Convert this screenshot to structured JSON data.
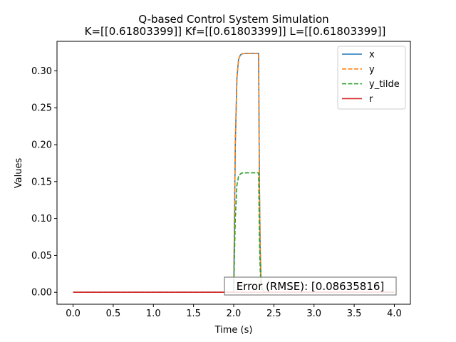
{
  "chart_data": {
    "type": "line",
    "title": "Q-based Control System Simulation",
    "subtitle": "K=[[0.61803399]] Kf=[[0.61803399]] L=[[0.61803399]]",
    "xlabel": "Time (s)",
    "ylabel": "Values",
    "xlim": [
      -0.2,
      4.2
    ],
    "ylim": [
      -0.0162,
      0.34
    ],
    "xticks": [
      "0.0",
      "0.5",
      "1.0",
      "1.5",
      "2.0",
      "2.5",
      "3.0",
      "3.5",
      "4.0"
    ],
    "xtick_values": [
      0,
      0.5,
      1.0,
      1.5,
      2.0,
      2.5,
      3.0,
      3.5,
      4.0
    ],
    "yticks": [
      "0.00",
      "0.05",
      "0.10",
      "0.15",
      "0.20",
      "0.25",
      "0.30"
    ],
    "ytick_values": [
      0,
      0.05,
      0.1,
      0.15,
      0.2,
      0.25,
      0.3
    ],
    "grid": false,
    "legend_position": "top-right",
    "annotation": "Error (RMSE): [0.08635816]",
    "series": [
      {
        "name": "x",
        "color": "#1f77b4",
        "style": "solid",
        "x": [
          0,
          1.99,
          2.0,
          2.02,
          2.04,
          2.06,
          2.08,
          2.1,
          2.15,
          2.2,
          2.3,
          2.31,
          2.32,
          2.33,
          2.34,
          2.35,
          2.37,
          2.4,
          3.0,
          4.0
        ],
        "y": [
          0,
          0,
          0,
          0.2,
          0.29,
          0.315,
          0.321,
          0.323,
          0.3236,
          0.3236,
          0.3236,
          0.3236,
          0.15,
          0.06,
          0.02,
          0.007,
          0.002,
          0,
          0,
          0
        ]
      },
      {
        "name": "y",
        "color": "#ff7f0e",
        "style": "dashed",
        "x": [
          0,
          1.99,
          2.0,
          2.02,
          2.04,
          2.06,
          2.08,
          2.1,
          2.15,
          2.2,
          2.3,
          2.31,
          2.32,
          2.33,
          2.34,
          2.35,
          2.37,
          2.4,
          3.0,
          4.0
        ],
        "y": [
          0,
          0,
          0,
          0.2,
          0.29,
          0.315,
          0.321,
          0.323,
          0.3236,
          0.3236,
          0.3236,
          0.3236,
          0.15,
          0.06,
          0.02,
          0.007,
          0.002,
          0,
          0,
          0
        ]
      },
      {
        "name": "y_tilde",
        "color": "#2ca02c",
        "style": "dashed",
        "x": [
          0,
          1.99,
          2.0,
          2.02,
          2.04,
          2.06,
          2.08,
          2.1,
          2.15,
          2.2,
          2.3,
          2.31,
          2.32,
          2.33,
          2.34,
          2.35,
          2.37,
          2.4,
          3.0,
          4.0
        ],
        "y": [
          0,
          0,
          0,
          0.1,
          0.145,
          0.157,
          0.16,
          0.1616,
          0.1618,
          0.1618,
          0.1618,
          0.1618,
          0.075,
          0.03,
          0.01,
          0.004,
          0.001,
          0,
          0,
          0
        ]
      },
      {
        "name": "r",
        "color": "#d62728",
        "style": "solid",
        "x": [
          0,
          4.0
        ],
        "y": [
          0,
          0
        ]
      }
    ]
  }
}
